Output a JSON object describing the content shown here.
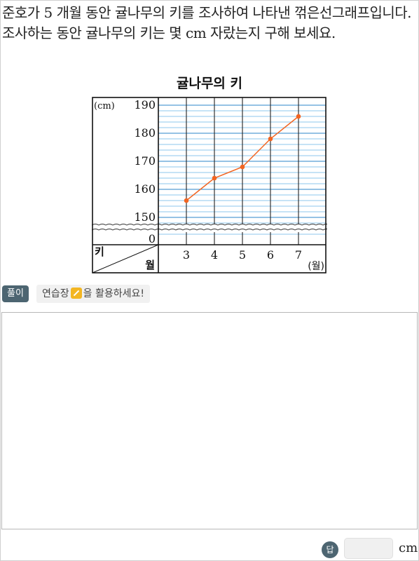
{
  "question": "준호가 5 개월 동안 귤나무의 키를 조사하여 나타낸 꺾은선그래프입니다. 조사하는 동안 귤나무의 키는 몇 cm 자랐는지 구해 보세요.",
  "chart_data": {
    "type": "line",
    "title": "귤나무의 키",
    "x": [
      3,
      4,
      5,
      6,
      7
    ],
    "x_tick_labels": [
      "3",
      "4",
      "5",
      "6",
      "7"
    ],
    "y_tick_labels": [
      "190",
      "180",
      "170",
      "160",
      "150",
      "0"
    ],
    "series": [
      {
        "values": [
          156,
          164,
          168,
          178,
          186
        ]
      }
    ],
    "ylim": [
      150,
      190
    ],
    "y_unit": "(cm)",
    "x_unit": "(월)",
    "corner_y_label": "키",
    "corner_x_label": "월",
    "axis_break": "wavy line between 0 and 150",
    "grid": true,
    "line_color": "#f26522",
    "grid_color": "#4aa3df"
  },
  "solution": {
    "badge": "풀이",
    "hint_before": "연습장",
    "hint_after": "을 활용하세요!"
  },
  "answer": {
    "badge": "답",
    "unit": "cm"
  }
}
